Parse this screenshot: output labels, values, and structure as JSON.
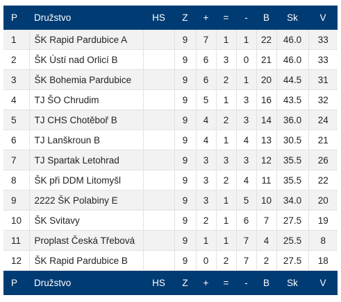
{
  "header": {
    "p": "P",
    "team": "Družstvo",
    "hs": "HS",
    "z": "Z",
    "plus": "+",
    "eq": "=",
    "minus": "-",
    "b": "B",
    "sk": "Sk",
    "v": "V"
  },
  "rows": [
    {
      "p": "1",
      "team": "ŠK Rapid Pardubice A",
      "hs": "",
      "z": "9",
      "plus": "7",
      "eq": "1",
      "minus": "1",
      "b": "22",
      "sk": "46.0",
      "v": "33"
    },
    {
      "p": "2",
      "team": "ŠK Ústí nad Orlicí B",
      "hs": "",
      "z": "9",
      "plus": "6",
      "eq": "3",
      "minus": "0",
      "b": "21",
      "sk": "46.0",
      "v": "33"
    },
    {
      "p": "3",
      "team": "ŠK Bohemia Pardubice",
      "hs": "",
      "z": "9",
      "plus": "6",
      "eq": "2",
      "minus": "1",
      "b": "20",
      "sk": "44.5",
      "v": "31"
    },
    {
      "p": "4",
      "team": "TJ ŠO Chrudim",
      "hs": "",
      "z": "9",
      "plus": "5",
      "eq": "1",
      "minus": "3",
      "b": "16",
      "sk": "43.5",
      "v": "32"
    },
    {
      "p": "5",
      "team": "TJ CHS Chotěboř B",
      "hs": "",
      "z": "9",
      "plus": "4",
      "eq": "2",
      "minus": "3",
      "b": "14",
      "sk": "36.0",
      "v": "24"
    },
    {
      "p": "6",
      "team": "TJ Lanškroun B",
      "hs": "",
      "z": "9",
      "plus": "4",
      "eq": "1",
      "minus": "4",
      "b": "13",
      "sk": "30.5",
      "v": "21"
    },
    {
      "p": "7",
      "team": "TJ Spartak Letohrad",
      "hs": "",
      "z": "9",
      "plus": "3",
      "eq": "3",
      "minus": "3",
      "b": "12",
      "sk": "35.5",
      "v": "26"
    },
    {
      "p": "8",
      "team": "ŠK při DDM Litomyšl",
      "hs": "",
      "z": "9",
      "plus": "3",
      "eq": "2",
      "minus": "4",
      "b": "11",
      "sk": "35.5",
      "v": "22"
    },
    {
      "p": "9",
      "team": "2222 ŠK Polabiny E",
      "hs": "",
      "z": "9",
      "plus": "3",
      "eq": "1",
      "minus": "5",
      "b": "10",
      "sk": "34.0",
      "v": "20"
    },
    {
      "p": "10",
      "team": "ŠK Svitavy",
      "hs": "",
      "z": "9",
      "plus": "2",
      "eq": "1",
      "minus": "6",
      "b": "7",
      "sk": "27.5",
      "v": "19"
    },
    {
      "p": "11",
      "team": "Proplast Česká Třebová",
      "hs": "",
      "z": "9",
      "plus": "1",
      "eq": "1",
      "minus": "7",
      "b": "4",
      "sk": "25.5",
      "v": "8"
    },
    {
      "p": "12",
      "team": "ŠK Rapid Pardubice B",
      "hs": "",
      "z": "9",
      "plus": "0",
      "eq": "2",
      "minus": "7",
      "b": "2",
      "sk": "27.5",
      "v": "18"
    }
  ],
  "colors": {
    "header_bg": "#003b73",
    "header_text": "#ffffff",
    "row_alt": "#f2f2f2",
    "grid": "#e2e2e2"
  }
}
